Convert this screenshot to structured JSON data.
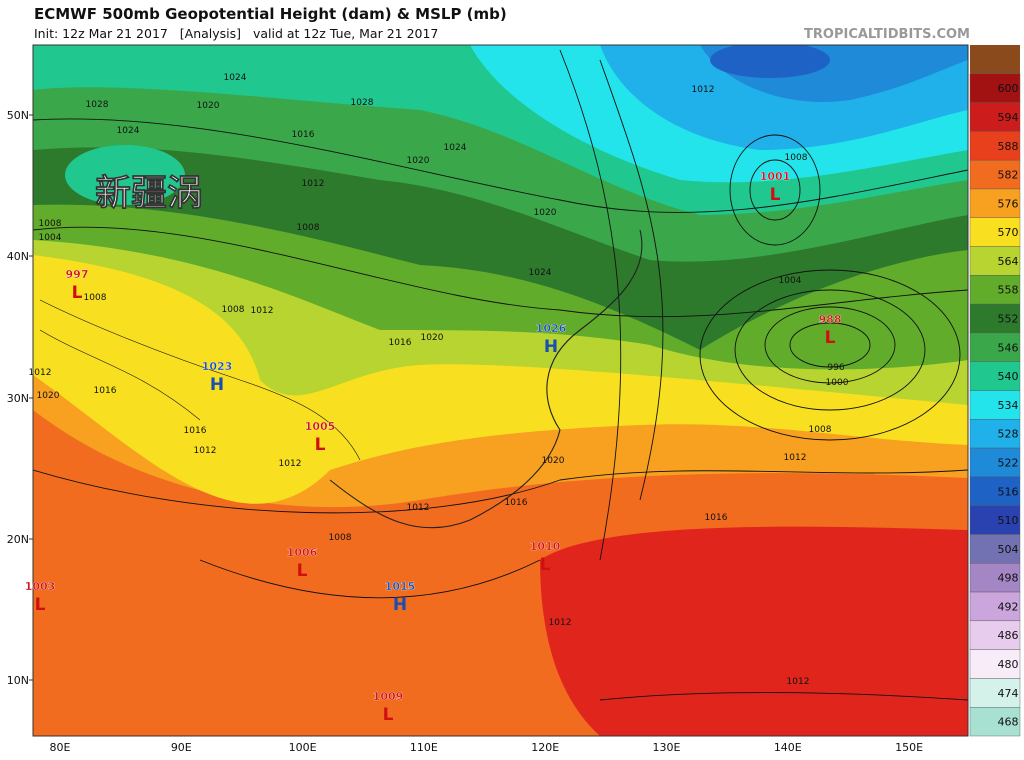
{
  "header": {
    "title": "ECMWF 500mb Geopotential Height (dam) & MSLP (mb)",
    "subtitle": "Init: 12z Mar 21 2017   [Analysis]   valid at 12z Tue, Mar 21 2017",
    "watermark": "TROPICALTIDBITS.COM"
  },
  "annotation": "新疆涡",
  "centers": [
    {
      "letter": "L",
      "value": 997,
      "color": "#d01010"
    },
    {
      "letter": "H",
      "value": 1023,
      "color": "#1a4fb0"
    },
    {
      "letter": "L",
      "value": 1005,
      "color": "#d01010"
    },
    {
      "letter": "L",
      "value": 1006,
      "color": "#d01010"
    },
    {
      "letter": "L",
      "value": 1003,
      "color": "#d01010"
    },
    {
      "letter": "H",
      "value": 1015,
      "color": "#1a4fb0"
    },
    {
      "letter": "L",
      "value": 1009,
      "color": "#d01010"
    },
    {
      "letter": "L",
      "value": 1010,
      "color": "#d01010"
    },
    {
      "letter": "L",
      "value": 1001,
      "color": "#d01010"
    },
    {
      "letter": "L",
      "value": 988,
      "color": "#d01010"
    },
    {
      "letter": "H",
      "value": 1026,
      "color": "#1a4fb0"
    }
  ],
  "contour_labels": [
    1024,
    1028,
    1024,
    1028,
    1020,
    1016,
    1024,
    1012,
    1020,
    1008,
    1020,
    1024,
    1016,
    1020,
    1008,
    1012,
    1012,
    1016,
    1020,
    1016,
    1012,
    1012,
    1020,
    1016,
    1012,
    1008,
    1016,
    1012,
    1008,
    1000,
    996,
    1004,
    1008,
    1012,
    1004,
    1008,
    1008,
    1012,
    1012
  ],
  "lat_labels": [
    "50N",
    "40N",
    "30N",
    "20N",
    "10N"
  ],
  "lon_labels": [
    "80E",
    "90E",
    "100E",
    "110E",
    "120E",
    "130E",
    "140E",
    "150E"
  ],
  "colorbar": {
    "levels": [
      600,
      594,
      588,
      582,
      576,
      570,
      564,
      558,
      552,
      546,
      540,
      534,
      528,
      522,
      516,
      510,
      504,
      498,
      492,
      486,
      480,
      474,
      468
    ],
    "colors": [
      "#a31212",
      "#cc1c1c",
      "#e8401c",
      "#f26c20",
      "#f8a020",
      "#f8e020",
      "#b8d430",
      "#62ac2c",
      "#2e7a2c",
      "#3aa84a",
      "#20c890",
      "#22e4ea",
      "#20b0ea",
      "#1e8ad8",
      "#1e62c6",
      "#2a42b0",
      "#7272b2",
      "#a486c4",
      "#caa6dc",
      "#e8cced",
      "#f8ecf8",
      "#d4f2ea",
      "#a8e0d2"
    ]
  }
}
